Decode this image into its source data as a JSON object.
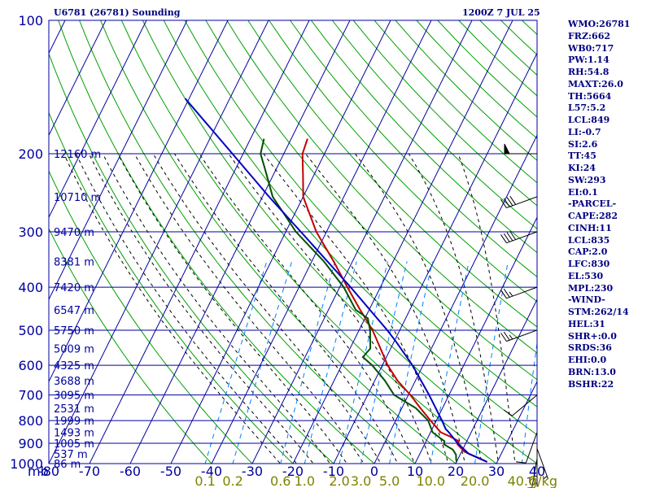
{
  "header": {
    "station": "U6781 (26781) Sounding",
    "time": "1200Z  7 JUL 25"
  },
  "indices": [
    "WMO:26781",
    "FRZ:662",
    "WB0:717",
    "PW:1.14",
    "RH:54.8",
    "MAXT:26.0",
    "TH:5664",
    "L57:5.2",
    "LCL:849",
    "LI:-0.7",
    "SI:2.6",
    "TT:45",
    "KI:24",
    "SW:293",
    "EI:0.1",
    "-PARCEL-",
    "CAPE:282",
    "CINH:11",
    "LCL:835",
    "CAP:2.0",
    "LFC:830",
    "EL:530",
    "MPL:230",
    "-WIND-",
    "STM:262/14",
    "HEL:31",
    "SHR+:0.0",
    "SRDS:36",
    "EHI:0.0",
    "BRN:13.0",
    "BSHR:22"
  ],
  "colors": {
    "background": "#ffffff",
    "isobar": "#0000a0",
    "isotherm": "#0000a0",
    "dry_adiabat": "#00a000",
    "moist_adiabat": "#000000",
    "mixing_ratio": "#0080ff",
    "temperature": "#c00000",
    "dewpoint": "#005000",
    "parcel": "#0000c0",
    "axis_labels": "#0000a0",
    "mixing_ratio_labels": "#808000",
    "wind_barb": "#000000"
  },
  "chart_data": {
    "type": "line",
    "diagram": "skew-T log-P",
    "xlabel": "",
    "ylabel": "",
    "y_unit_label": "mb",
    "mixing_ratio_unit_label": "g/kg",
    "ylim": [
      1000,
      100
    ],
    "xlim": [
      -80,
      40
    ],
    "y_scale": "log",
    "pressure_ticks": [
      100,
      200,
      300,
      400,
      500,
      600,
      700,
      800,
      900,
      1000
    ],
    "temperature_ticks": [
      -80,
      -70,
      -60,
      -50,
      -40,
      -30,
      -20,
      -10,
      0,
      10,
      20,
      30,
      40
    ],
    "height_labels": [
      {
        "p": 200,
        "text": "12160 m"
      },
      {
        "p": 250,
        "text": "10710 m"
      },
      {
        "p": 300,
        "text": "9470 m"
      },
      {
        "p": 350,
        "text": "8381 m"
      },
      {
        "p": 400,
        "text": "7420 m"
      },
      {
        "p": 450,
        "text": "6547 m"
      },
      {
        "p": 500,
        "text": "5750 m"
      },
      {
        "p": 550,
        "text": "5009 m"
      },
      {
        "p": 600,
        "text": "4325 m"
      },
      {
        "p": 650,
        "text": "3688 m"
      },
      {
        "p": 700,
        "text": "3095 m"
      },
      {
        "p": 750,
        "text": "2531 m"
      },
      {
        "p": 800,
        "text": "1999 m"
      },
      {
        "p": 850,
        "text": "1493 m"
      },
      {
        "p": 900,
        "text": "1005 m"
      },
      {
        "p": 950,
        "text": "537 m"
      },
      {
        "p": 1000,
        "text": "86 m"
      }
    ],
    "mixing_ratio_labels": [
      "0.1",
      "0.2",
      "0.6",
      "1.0",
      "2.0",
      "3.0",
      "5.0",
      "10.0",
      "20.0",
      "40.0"
    ],
    "mixing_ratio_values": [
      0.1,
      0.2,
      0.6,
      1.0,
      2.0,
      3.0,
      5.0,
      10.0,
      20.0,
      40.0
    ],
    "series": [
      {
        "key": "temperature",
        "points": [
          [
            991,
            27.5
          ],
          [
            975,
            25.5
          ],
          [
            960,
            23.4
          ],
          [
            940,
            20.7
          ],
          [
            905,
            18.1
          ],
          [
            890,
            18.0
          ],
          [
            870,
            15.5
          ],
          [
            850,
            12.5
          ],
          [
            800,
            8.6
          ],
          [
            750,
            4.6
          ],
          [
            700,
            0.5
          ],
          [
            650,
            -4.4
          ],
          [
            600,
            -8.7
          ],
          [
            550,
            -12.5
          ],
          [
            500,
            -16.7
          ],
          [
            450,
            -22.2
          ],
          [
            400,
            -28.1
          ],
          [
            350,
            -34.6
          ],
          [
            300,
            -42.5
          ],
          [
            250,
            -50.0
          ],
          [
            225,
            -52.5
          ],
          [
            200,
            -55.4
          ],
          [
            185,
            -56.0
          ]
        ]
      },
      {
        "key": "dewpoint",
        "points": [
          [
            991,
            20.0
          ],
          [
            975,
            19.5
          ],
          [
            955,
            19.0
          ],
          [
            930,
            17.6
          ],
          [
            905,
            14.8
          ],
          [
            890,
            14.5
          ],
          [
            870,
            12.5
          ],
          [
            850,
            10.5
          ],
          [
            800,
            8.0
          ],
          [
            750,
            3.5
          ],
          [
            700,
            -3.5
          ],
          [
            650,
            -7.5
          ],
          [
            600,
            -12.5
          ],
          [
            575,
            -15.8
          ],
          [
            550,
            -15.0
          ],
          [
            500,
            -17.3
          ],
          [
            470,
            -19.3
          ],
          [
            450,
            -23.3
          ],
          [
            400,
            -29.0
          ],
          [
            350,
            -37.0
          ],
          [
            300,
            -47.5
          ],
          [
            250,
            -57.5
          ],
          [
            215,
            -63.0
          ],
          [
            200,
            -65.7
          ],
          [
            185,
            -66.7
          ]
        ]
      },
      {
        "key": "parcel",
        "points": [
          [
            991,
            27.5
          ],
          [
            950,
            22.0
          ],
          [
            900,
            18.0
          ],
          [
            850,
            14.5
          ],
          [
            835,
            13.3
          ],
          [
            800,
            11.4
          ],
          [
            700,
            5.1
          ],
          [
            600,
            -2.6
          ],
          [
            530,
            -9.6
          ],
          [
            500,
            -13.1
          ],
          [
            400,
            -27.3
          ],
          [
            300,
            -46.3
          ],
          [
            250,
            -58.4
          ],
          [
            200,
            -72.6
          ],
          [
            150,
            -91.0
          ]
        ]
      }
    ],
    "wind_barbs": [
      {
        "p": 200,
        "dir": 270,
        "speed": 50
      },
      {
        "p": 250,
        "dir": 250,
        "speed": 40
      },
      {
        "p": 300,
        "dir": 250,
        "speed": 40
      },
      {
        "p": 400,
        "dir": 250,
        "speed": 25
      },
      {
        "p": 500,
        "dir": 250,
        "speed": 25
      },
      {
        "p": 700,
        "dir": 230,
        "speed": 10
      },
      {
        "p": 850,
        "dir": 200,
        "speed": 10
      },
      {
        "p": 900,
        "dir": 180,
        "speed": 10
      },
      {
        "p": 925,
        "dir": 160,
        "speed": 5
      },
      {
        "p": 950,
        "dir": 180,
        "speed": 5
      },
      {
        "p": 975,
        "dir": 190,
        "speed": 5
      }
    ],
    "grid": true,
    "legend": "none"
  }
}
